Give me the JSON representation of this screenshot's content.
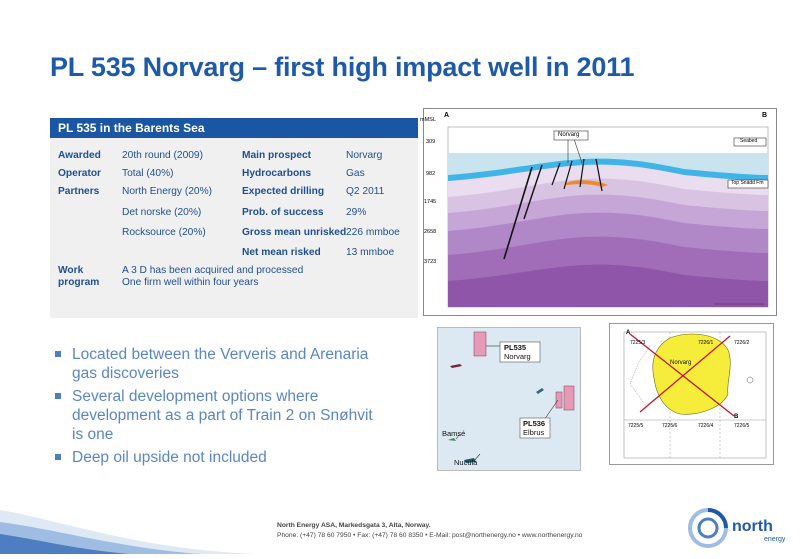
{
  "title": "PL 535 Norvarg – first high impact well in 2011",
  "table": {
    "header": "PL 535 in the Barents Sea",
    "rows": [
      {
        "l1": "Awarded",
        "v1": "20th round (2009)",
        "l2": "Main prospect",
        "v2": "Norvarg"
      },
      {
        "l1": "Operator",
        "v1": "Total (40%)",
        "l2": "Hydrocarbons",
        "v2": "Gas"
      },
      {
        "l1": "Partners",
        "v1": "North Energy (20%)",
        "l2": "Expected drilling",
        "v2": "Q2 2011"
      },
      {
        "l1": "",
        "v1": "Det norske (20%)",
        "l2": "Prob. of success",
        "v2": "29%"
      },
      {
        "l1": "",
        "v1": "Rocksource (20%)",
        "l2": "Gross mean unrisked",
        "v2": "226 mmboe"
      },
      {
        "l1": "",
        "v1": "",
        "l2": "Net mean risked",
        "v2": "13 mmboe"
      }
    ],
    "work_label_1": "Work",
    "work_label_2": "program",
    "work_line_1": "A 3 D has been acquired  and processed",
    "work_line_2": "One firm well within four years"
  },
  "bullets": [
    "Located between the Ververis and Arenaria gas discoveries",
    "Several development options where development as a part of Train 2 on Snøhvit is one",
    "Deep oil upside not included"
  ],
  "section": {
    "point_a": "A",
    "point_b": "B",
    "unit": "mMSL",
    "depths": [
      "309",
      "982",
      "1745",
      "2658",
      "3723"
    ],
    "norvarg_label": "Norvarg",
    "seabed_label": "Seabed",
    "fm_label": "Top Snädd Fm"
  },
  "map1": {
    "pl535_label": "PL535",
    "pl535_name": "Norvarg",
    "pl536_label": "PL536",
    "pl536_name": "Elbrus",
    "barnse": "Bamsé",
    "nucula": "Nucula"
  },
  "map2": {
    "norvarg": "Norvarg",
    "a": "A",
    "b": "B",
    "blocks_top": [
      "7225/3",
      "7226/1",
      "7226/2"
    ],
    "blocks_bottom": [
      "7225/5",
      "7225/6",
      "7226/4",
      "7226/5"
    ]
  },
  "footer": {
    "line1": "North Energy ASA, Markedsgata 3, Alta, Norway.",
    "line2": "Phone: (+47) 78 60 7950  • Fax: (+47) 78 60 8350  • E-Mail: post@northenergy.no  • www.northenergy.no"
  },
  "logo": {
    "word": "north",
    "sub": "energy"
  },
  "colors": {
    "title": "#1f5aa8",
    "table_header": "#1a56a3",
    "bullet_text": "#5a86c4"
  }
}
